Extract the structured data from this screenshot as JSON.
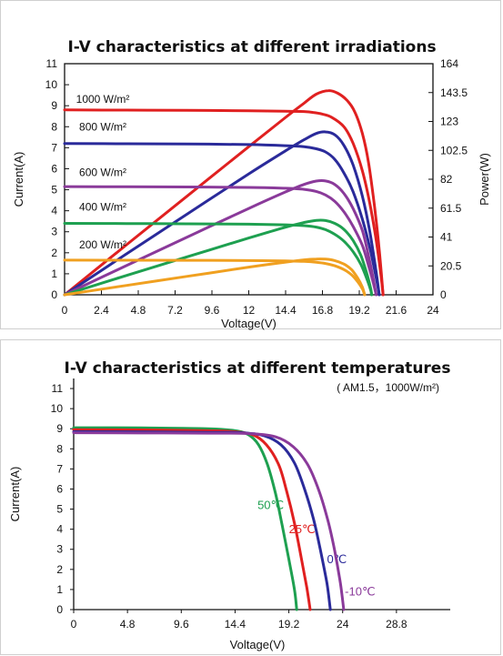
{
  "chart_data": [
    {
      "type": "line",
      "title": "I-V characteristics at different irradiations",
      "xlabel": "Voltage(V)",
      "ylabel": "Current(A)",
      "y2label": "Power(W)",
      "xlim": [
        0,
        24
      ],
      "ylim": [
        0,
        11
      ],
      "y2lim": [
        0,
        164
      ],
      "xticks": [
        "0",
        "2.4",
        "4.8",
        "7.2",
        "9.6",
        "12",
        "14.4",
        "16.8",
        "19.2",
        "21.6",
        "24"
      ],
      "yticks": [
        "0",
        "1",
        "2",
        "3",
        "4",
        "5",
        "6",
        "7",
        "8",
        "9",
        "10",
        "11"
      ],
      "y2ticks": [
        "0",
        "20.5",
        "41",
        "61.5",
        "82",
        "102.5",
        "123",
        "143.5",
        "164"
      ],
      "grid": false,
      "annotations": [
        "1000 W/m²",
        "800 W/m²",
        "600 W/m²",
        "400 W/m²",
        "200 W/m²"
      ],
      "series": [
        {
          "label": "1000 W/m²",
          "color": "#e02020",
          "kind": "current",
          "axis": "left",
          "points": [
            [
              0,
              8.8
            ],
            [
              4,
              8.79
            ],
            [
              8,
              8.78
            ],
            [
              12,
              8.76
            ],
            [
              14.4,
              8.74
            ],
            [
              15.6,
              8.72
            ],
            [
              16.2,
              8.68
            ],
            [
              16.8,
              8.6
            ],
            [
              17.4,
              8.45
            ],
            [
              18.2,
              8.0
            ],
            [
              18.8,
              7.2
            ],
            [
              19.4,
              5.9
            ],
            [
              19.9,
              4.3
            ],
            [
              20.3,
              2.6
            ],
            [
              20.6,
              1.0
            ],
            [
              20.75,
              0
            ]
          ]
        },
        {
          "label": "1000 W/m²",
          "color": "#e02020",
          "kind": "power",
          "axis": "right",
          "points": [
            [
              0,
              0
            ],
            [
              4,
              35.2
            ],
            [
              8,
              70.2
            ],
            [
              12,
              105.1
            ],
            [
              14.4,
              125.9
            ],
            [
              15.6,
              136.0
            ],
            [
              16.4,
              142.4
            ],
            [
              17.2,
              144.9
            ],
            [
              17.8,
              143.0
            ],
            [
              18.4,
              138.0
            ],
            [
              18.9,
              130.0
            ],
            [
              19.4,
              114.5
            ],
            [
              19.8,
              94.0
            ],
            [
              20.2,
              62.0
            ],
            [
              20.5,
              32.0
            ],
            [
              20.75,
              0
            ]
          ]
        },
        {
          "label": "800 W/m²",
          "color": "#2a2a9a",
          "kind": "current",
          "axis": "left",
          "points": [
            [
              0,
              7.2
            ],
            [
              4,
              7.19
            ],
            [
              8,
              7.18
            ],
            [
              12,
              7.15
            ],
            [
              14.4,
              7.1
            ],
            [
              15.6,
              7.05
            ],
            [
              16.4,
              6.95
            ],
            [
              17.0,
              6.8
            ],
            [
              17.6,
              6.45
            ],
            [
              18.2,
              5.8
            ],
            [
              18.8,
              4.9
            ],
            [
              19.4,
              3.6
            ],
            [
              19.9,
              2.2
            ],
            [
              20.3,
              0.8
            ],
            [
              20.5,
              0
            ]
          ]
        },
        {
          "label": "800 W/m²",
          "color": "#2a2a9a",
          "kind": "power",
          "axis": "right",
          "points": [
            [
              0,
              0
            ],
            [
              4,
              28.8
            ],
            [
              8,
              57.4
            ],
            [
              12,
              85.8
            ],
            [
              14.4,
              102.2
            ],
            [
              15.6,
              110.0
            ],
            [
              16.4,
              114.5
            ],
            [
              17.0,
              115.6
            ],
            [
              17.6,
              113.6
            ],
            [
              18.2,
              106.0
            ],
            [
              18.8,
              92.0
            ],
            [
              19.4,
              70.0
            ],
            [
              19.9,
              44.0
            ],
            [
              20.3,
              16.0
            ],
            [
              20.5,
              0
            ]
          ]
        },
        {
          "label": "600 W/m²",
          "color": "#8a3a9a",
          "kind": "current",
          "axis": "left",
          "points": [
            [
              0,
              5.15
            ],
            [
              4,
              5.14
            ],
            [
              8,
              5.13
            ],
            [
              12,
              5.11
            ],
            [
              14.4,
              5.07
            ],
            [
              15.6,
              5.02
            ],
            [
              16.4,
              4.92
            ],
            [
              17.0,
              4.75
            ],
            [
              17.6,
              4.45
            ],
            [
              18.2,
              3.95
            ],
            [
              18.8,
              3.25
            ],
            [
              19.4,
              2.35
            ],
            [
              19.8,
              1.4
            ],
            [
              20.1,
              0.6
            ],
            [
              20.3,
              0
            ]
          ]
        },
        {
          "label": "600 W/m²",
          "color": "#8a3a9a",
          "kind": "power",
          "axis": "right",
          "points": [
            [
              0,
              0
            ],
            [
              4,
              20.6
            ],
            [
              8,
              41.0
            ],
            [
              12,
              61.3
            ],
            [
              14.4,
              73.0
            ],
            [
              15.6,
              78.3
            ],
            [
              16.4,
              80.7
            ],
            [
              17.0,
              80.8
            ],
            [
              17.6,
              78.3
            ],
            [
              18.2,
              71.9
            ],
            [
              18.8,
              61.1
            ],
            [
              19.4,
              45.6
            ],
            [
              19.8,
              27.7
            ],
            [
              20.1,
              12.1
            ],
            [
              20.3,
              0
            ]
          ]
        },
        {
          "label": "400 W/m²",
          "color": "#1ea050",
          "kind": "current",
          "axis": "left",
          "points": [
            [
              0,
              3.4
            ],
            [
              4,
              3.39
            ],
            [
              8,
              3.38
            ],
            [
              12,
              3.36
            ],
            [
              14.4,
              3.33
            ],
            [
              15.6,
              3.29
            ],
            [
              16.4,
              3.22
            ],
            [
              17.0,
              3.1
            ],
            [
              17.6,
              2.88
            ],
            [
              18.2,
              2.55
            ],
            [
              18.8,
              2.05
            ],
            [
              19.3,
              1.45
            ],
            [
              19.7,
              0.75
            ],
            [
              19.95,
              0.2
            ],
            [
              20.0,
              0
            ]
          ]
        },
        {
          "label": "400 W/m²",
          "color": "#1ea050",
          "kind": "power",
          "axis": "right",
          "points": [
            [
              0,
              0
            ],
            [
              4,
              13.6
            ],
            [
              8,
              27.0
            ],
            [
              12,
              40.3
            ],
            [
              14.4,
              48.0
            ],
            [
              15.6,
              51.3
            ],
            [
              16.4,
              52.8
            ],
            [
              17.0,
              52.7
            ],
            [
              17.6,
              50.7
            ],
            [
              18.2,
              46.4
            ],
            [
              18.8,
              38.5
            ],
            [
              19.3,
              28.0
            ],
            [
              19.7,
              14.8
            ],
            [
              19.95,
              4.0
            ],
            [
              20.0,
              0
            ]
          ]
        },
        {
          "label": "200 W/m²",
          "color": "#f0a020",
          "kind": "current",
          "axis": "left",
          "points": [
            [
              0,
              1.65
            ],
            [
              4,
              1.645
            ],
            [
              8,
              1.64
            ],
            [
              12,
              1.63
            ],
            [
              14.4,
              1.61
            ],
            [
              15.6,
              1.59
            ],
            [
              16.4,
              1.55
            ],
            [
              17.0,
              1.49
            ],
            [
              17.6,
              1.38
            ],
            [
              18.2,
              1.2
            ],
            [
              18.7,
              0.95
            ],
            [
              19.1,
              0.62
            ],
            [
              19.4,
              0.28
            ],
            [
              19.55,
              0
            ]
          ]
        },
        {
          "label": "200 W/m²",
          "color": "#f0a020",
          "kind": "power",
          "axis": "right",
          "points": [
            [
              0,
              0
            ],
            [
              4,
              6.6
            ],
            [
              8,
              13.1
            ],
            [
              12,
              19.6
            ],
            [
              14.4,
              23.2
            ],
            [
              15.6,
              24.8
            ],
            [
              16.4,
              25.4
            ],
            [
              17.0,
              25.3
            ],
            [
              17.6,
              24.3
            ],
            [
              18.2,
              21.8
            ],
            [
              18.7,
              17.8
            ],
            [
              19.1,
              11.8
            ],
            [
              19.4,
              5.4
            ],
            [
              19.55,
              0
            ]
          ]
        }
      ]
    },
    {
      "type": "line",
      "title": "I-V characteristics at different temperatures",
      "subtitle": "( AM1.5，1000W/m²)",
      "xlabel": "Voltage(V)",
      "ylabel": "Current(A)",
      "xlim": [
        0,
        33.6
      ],
      "ylim": [
        0,
        11.5
      ],
      "xticks": [
        "0",
        "4.8",
        "9.6",
        "14.4",
        "19.2",
        "24",
        "28.8"
      ],
      "yticks": [
        "0",
        "1",
        "2",
        "3",
        "4",
        "5",
        "6",
        "7",
        "8",
        "9",
        "10",
        "11"
      ],
      "grid": false,
      "series": [
        {
          "name": "50℃",
          "color": "#1ea050",
          "points": [
            [
              0,
              9.05
            ],
            [
              6,
              9.04
            ],
            [
              12,
              9.0
            ],
            [
              14.4,
              8.9
            ],
            [
              15.6,
              8.7
            ],
            [
              16.5,
              8.2
            ],
            [
              17.3,
              7.2
            ],
            [
              18.0,
              5.8
            ],
            [
              18.6,
              4.2
            ],
            [
              19.2,
              2.5
            ],
            [
              19.7,
              1.0
            ],
            [
              19.9,
              0
            ]
          ]
        },
        {
          "name": "25℃",
          "color": "#e02020",
          "points": [
            [
              0,
              8.95
            ],
            [
              6,
              8.94
            ],
            [
              12,
              8.9
            ],
            [
              14.4,
              8.85
            ],
            [
              16.0,
              8.7
            ],
            [
              17.2,
              8.2
            ],
            [
              18.3,
              7.2
            ],
            [
              19.0,
              5.9
            ],
            [
              19.7,
              4.3
            ],
            [
              20.3,
              2.6
            ],
            [
              20.8,
              1.1
            ],
            [
              21.1,
              0
            ]
          ]
        },
        {
          "name": "0℃",
          "color": "#2a2a9a",
          "points": [
            [
              0,
              8.85
            ],
            [
              6,
              8.84
            ],
            [
              12,
              8.82
            ],
            [
              15.0,
              8.8
            ],
            [
              17.0,
              8.65
            ],
            [
              18.5,
              8.2
            ],
            [
              19.7,
              7.3
            ],
            [
              20.6,
              6.0
            ],
            [
              21.4,
              4.5
            ],
            [
              22.0,
              3.0
            ],
            [
              22.6,
              1.3
            ],
            [
              22.9,
              0
            ]
          ]
        },
        {
          "name": "-10℃",
          "color": "#8a3a9a",
          "points": [
            [
              0,
              8.8
            ],
            [
              6,
              8.79
            ],
            [
              12,
              8.78
            ],
            [
              15.6,
              8.76
            ],
            [
              18.0,
              8.6
            ],
            [
              19.6,
              8.1
            ],
            [
              20.9,
              7.2
            ],
            [
              21.9,
              5.9
            ],
            [
              22.7,
              4.4
            ],
            [
              23.3,
              2.9
            ],
            [
              23.8,
              1.3
            ],
            [
              24.1,
              0
            ]
          ]
        }
      ]
    }
  ]
}
